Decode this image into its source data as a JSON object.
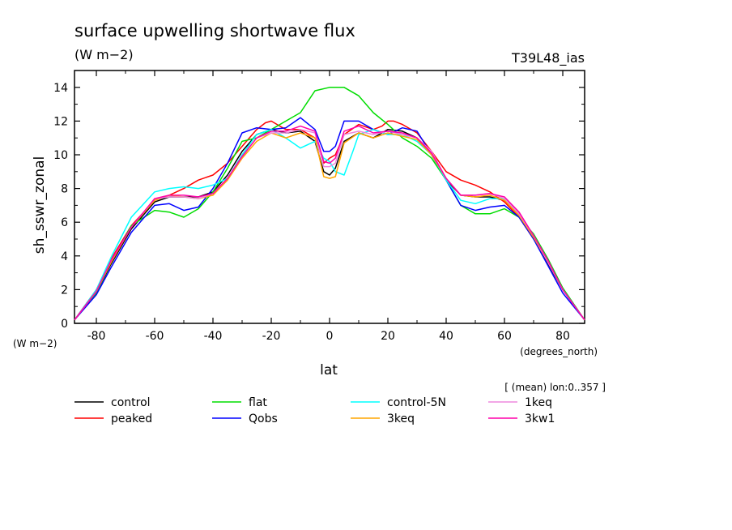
{
  "chart_data": {
    "type": "line",
    "title": "surface upwelling shortwave flux",
    "units": "(W m−2)",
    "experiment": "T39L48_ias",
    "xlabel": "lat",
    "x_units": "(degrees_north)",
    "ylabel": "sh_sswr_zonal",
    "y_units": "(W m−2)",
    "averaging_note": "[ (mean) lon:0..357 ]",
    "xlim": [
      -87.5,
      87.5
    ],
    "ylim": [
      0,
      15
    ],
    "x_ticks": [
      "-80",
      "-60",
      "-40",
      "-20",
      "0",
      "20",
      "40",
      "60",
      "80"
    ],
    "y_ticks": [
      "0",
      "2",
      "4",
      "6",
      "8",
      "10",
      "12",
      "14"
    ],
    "grid": false,
    "legend_position": "bottom",
    "series": [
      {
        "name": "control",
        "color": "#000000",
        "x": [
          -87.5,
          -80,
          -75,
          -68,
          -60,
          -55,
          -50,
          -45,
          -40,
          -35,
          -30,
          -25,
          -20,
          -15,
          -10,
          -5,
          -2,
          0,
          2,
          5,
          10,
          15,
          20,
          25,
          30,
          35,
          40,
          45,
          50,
          55,
          60,
          65,
          70,
          75,
          80,
          87.5
        ],
        "y": [
          0.2,
          1.8,
          3.5,
          5.6,
          7.2,
          7.5,
          7.5,
          7.5,
          7.8,
          8.8,
          10.2,
          11.2,
          11.5,
          11.3,
          11.4,
          10.8,
          9.0,
          8.8,
          9.2,
          10.8,
          11.3,
          11.0,
          11.5,
          11.4,
          11.0,
          10.0,
          8.5,
          7.6,
          7.5,
          7.5,
          7.3,
          6.5,
          5.2,
          3.5,
          2.0,
          0.2
        ]
      },
      {
        "name": "peaked",
        "color": "#ff0000",
        "x": [
          -87.5,
          -80,
          -75,
          -68,
          -60,
          -55,
          -50,
          -45,
          -40,
          -35,
          -30,
          -25,
          -22,
          -20,
          -18,
          -15,
          -10,
          -5,
          -2,
          0,
          2,
          5,
          10,
          15,
          18,
          20,
          22,
          25,
          30,
          35,
          40,
          45,
          50,
          55,
          60,
          65,
          70,
          75,
          80,
          87.5
        ],
        "y": [
          0.2,
          2.0,
          3.8,
          5.8,
          7.3,
          7.6,
          8.0,
          8.5,
          8.8,
          9.5,
          10.5,
          11.5,
          11.9,
          12.0,
          11.8,
          11.5,
          11.5,
          11.0,
          9.5,
          9.8,
          10.0,
          11.2,
          11.8,
          11.5,
          11.7,
          12.0,
          12.0,
          11.8,
          11.3,
          10.2,
          9.0,
          8.5,
          8.2,
          7.8,
          7.2,
          6.3,
          5.0,
          3.7,
          2.0,
          0.2
        ]
      },
      {
        "name": "flat",
        "color": "#00dd00",
        "x": [
          -87.5,
          -80,
          -75,
          -68,
          -60,
          -55,
          -50,
          -45,
          -40,
          -35,
          -30,
          -25,
          -20,
          -15,
          -10,
          -5,
          0,
          5,
          10,
          15,
          20,
          25,
          30,
          35,
          40,
          45,
          50,
          55,
          60,
          65,
          70,
          75,
          80,
          87.5
        ],
        "y": [
          0.2,
          1.8,
          3.6,
          5.8,
          6.7,
          6.6,
          6.3,
          6.8,
          7.8,
          9.2,
          10.8,
          11.0,
          11.5,
          12.0,
          12.5,
          13.8,
          14.0,
          14.0,
          13.5,
          12.5,
          11.8,
          11.0,
          10.5,
          9.8,
          8.5,
          7.0,
          6.5,
          6.5,
          6.8,
          6.3,
          5.3,
          3.8,
          2.1,
          0.2
        ]
      },
      {
        "name": "Qobs",
        "color": "#0000ff",
        "x": [
          -87.5,
          -80,
          -75,
          -68,
          -60,
          -55,
          -50,
          -45,
          -40,
          -35,
          -30,
          -25,
          -20,
          -15,
          -10,
          -5,
          -2,
          0,
          2,
          5,
          10,
          15,
          20,
          25,
          30,
          35,
          40,
          45,
          50,
          55,
          60,
          65,
          70,
          75,
          80,
          87.5
        ],
        "y": [
          0.2,
          1.7,
          3.3,
          5.4,
          7.0,
          7.1,
          6.7,
          6.9,
          8.0,
          9.5,
          11.3,
          11.6,
          11.5,
          11.6,
          12.2,
          11.5,
          10.2,
          10.2,
          10.5,
          12.0,
          12.0,
          11.5,
          11.2,
          11.6,
          11.4,
          10.0,
          8.5,
          7.0,
          6.7,
          6.9,
          7.0,
          6.3,
          5.0,
          3.4,
          1.8,
          0.2
        ]
      },
      {
        "name": "control-5N",
        "color": "#00ffff",
        "x": [
          -87.5,
          -80,
          -75,
          -68,
          -60,
          -55,
          -50,
          -45,
          -40,
          -35,
          -30,
          -25,
          -20,
          -15,
          -10,
          -5,
          -2,
          0,
          2,
          5,
          8,
          10,
          15,
          20,
          25,
          30,
          35,
          40,
          45,
          50,
          55,
          60,
          65,
          70,
          75,
          80,
          87.5
        ],
        "y": [
          0.2,
          2.0,
          3.9,
          6.3,
          7.8,
          8.0,
          8.1,
          8.0,
          8.2,
          8.6,
          10.0,
          11.2,
          11.5,
          11.0,
          10.4,
          10.8,
          9.8,
          9.6,
          9.0,
          8.8,
          10.2,
          11.2,
          11.5,
          11.2,
          11.2,
          10.8,
          10.0,
          8.5,
          7.3,
          7.1,
          7.4,
          7.4,
          6.5,
          5.2,
          3.6,
          2.0,
          0.2
        ]
      },
      {
        "name": "3keq",
        "color": "#ffa500",
        "x": [
          -87.5,
          -80,
          -75,
          -68,
          -60,
          -55,
          -50,
          -45,
          -40,
          -35,
          -30,
          -25,
          -20,
          -15,
          -10,
          -5,
          -2,
          0,
          2,
          5,
          10,
          15,
          20,
          25,
          30,
          35,
          40,
          45,
          50,
          55,
          60,
          65,
          70,
          75,
          80,
          87.5
        ],
        "y": [
          0.2,
          1.9,
          3.6,
          5.7,
          7.3,
          7.6,
          7.5,
          7.4,
          7.6,
          8.5,
          9.8,
          10.8,
          11.3,
          11.0,
          11.3,
          11.0,
          8.7,
          8.6,
          8.7,
          10.7,
          11.3,
          11.0,
          11.3,
          11.1,
          10.9,
          10.0,
          8.6,
          7.6,
          7.5,
          7.6,
          7.3,
          6.4,
          5.1,
          3.6,
          2.0,
          0.2
        ]
      },
      {
        "name": "1keq",
        "color": "#ee88dd",
        "x": [
          -87.5,
          -80,
          -75,
          -68,
          -60,
          -55,
          -50,
          -45,
          -40,
          -35,
          -30,
          -25,
          -20,
          -15,
          -10,
          -5,
          -2,
          0,
          2,
          5,
          10,
          15,
          20,
          25,
          30,
          35,
          40,
          45,
          50,
          55,
          60,
          65,
          70,
          75,
          80,
          87.5
        ],
        "y": [
          0.2,
          1.9,
          3.7,
          5.7,
          7.4,
          7.5,
          7.5,
          7.4,
          7.7,
          8.6,
          9.9,
          11.0,
          11.3,
          11.3,
          11.5,
          11.3,
          9.3,
          9.3,
          9.5,
          11.2,
          11.4,
          11.2,
          11.4,
          11.2,
          11.0,
          10.2,
          8.6,
          7.6,
          7.6,
          7.7,
          7.4,
          6.5,
          5.2,
          3.6,
          2.0,
          0.2
        ]
      },
      {
        "name": "3kw1",
        "color": "#ff00aa",
        "x": [
          -87.5,
          -80,
          -75,
          -68,
          -60,
          -55,
          -50,
          -45,
          -40,
          -35,
          -30,
          -25,
          -20,
          -15,
          -10,
          -5,
          -2,
          0,
          2,
          5,
          10,
          15,
          20,
          25,
          30,
          35,
          40,
          45,
          50,
          55,
          60,
          65,
          70,
          75,
          80,
          87.5
        ],
        "y": [
          0.2,
          1.9,
          3.7,
          5.7,
          7.4,
          7.6,
          7.6,
          7.5,
          7.7,
          8.6,
          9.9,
          11.0,
          11.4,
          11.4,
          11.7,
          11.4,
          9.6,
          9.5,
          9.8,
          11.4,
          11.7,
          11.3,
          11.4,
          11.3,
          11.0,
          10.1,
          8.6,
          7.6,
          7.6,
          7.7,
          7.5,
          6.6,
          5.2,
          3.7,
          2.0,
          0.2
        ]
      }
    ]
  }
}
